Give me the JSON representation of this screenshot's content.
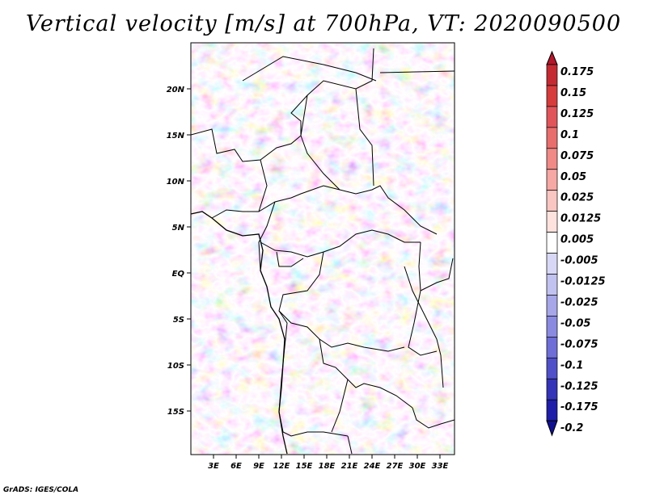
{
  "title": "Vertical velocity [m/s] at 700hPa, VT: 2020090500",
  "credit": "GrADS: IGES/COLA",
  "map": {
    "lat_labels": [
      "20N",
      "15N",
      "10N",
      "5N",
      "EQ",
      "5S",
      "10S",
      "15S"
    ],
    "lon_labels": [
      "3E",
      "6E",
      "9E",
      "12E",
      "15E",
      "18E",
      "21E",
      "24E",
      "27E",
      "30E",
      "33E"
    ],
    "domain": {
      "lon_min": 0,
      "lon_max": 35,
      "lat_min": -20,
      "lat_max": 25
    }
  },
  "colorbar": {
    "labels": [
      "0.175",
      "0.15",
      "0.125",
      "0.1",
      "0.075",
      "0.05",
      "0.025",
      "0.0125",
      "0.005",
      "-0.005",
      "-0.0125",
      "-0.025",
      "-0.05",
      "-0.075",
      "-0.1",
      "-0.125",
      "-0.175",
      "-0.2"
    ],
    "colors": [
      "#b2182b",
      "#c42a32",
      "#d63c3c",
      "#e0555a",
      "#e86e6e",
      "#ef8a86",
      "#f5a8a4",
      "#f9c6c2",
      "#fde2de",
      "#ffffff",
      "#d8d8f6",
      "#c2c2f0",
      "#a6a6e8",
      "#8a8ae0",
      "#6e6ed6",
      "#5050c8",
      "#3434b8",
      "#1e1ea8",
      "#10108e"
    ]
  }
}
